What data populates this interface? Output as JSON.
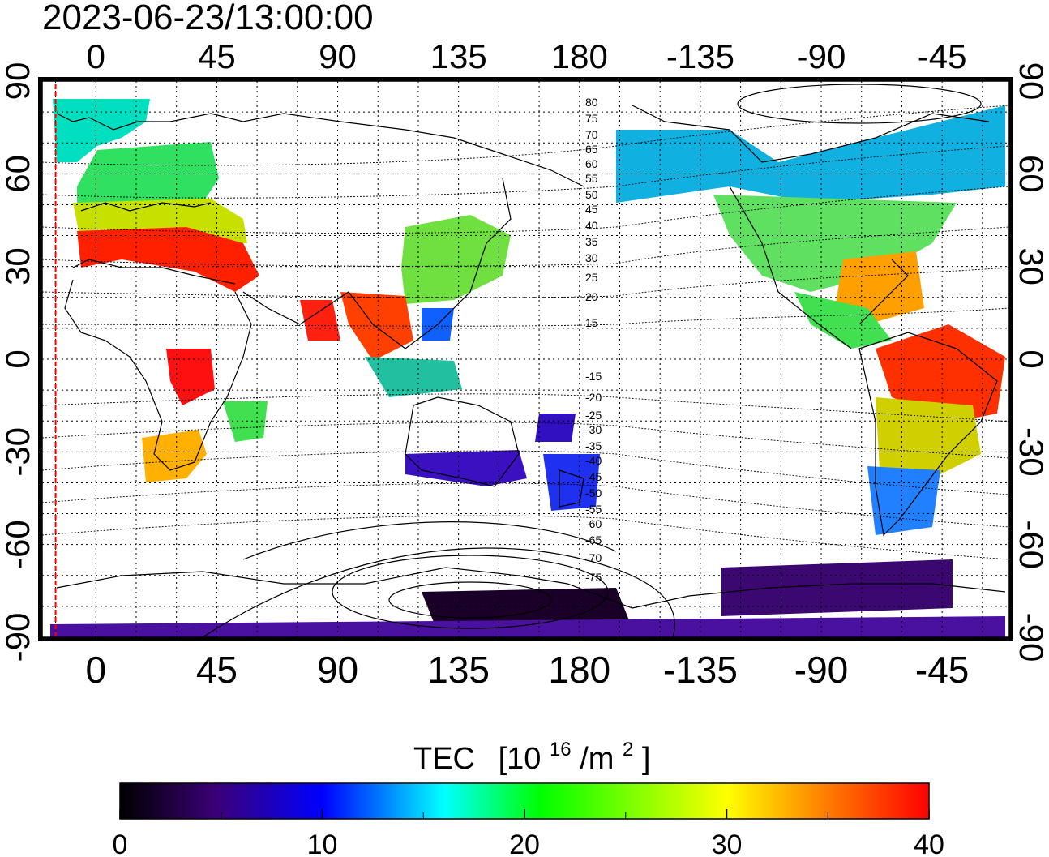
{
  "timestamp": "2023-06-23/13:00:00",
  "top_lon_labels": [
    "0",
    "45",
    "90",
    "135",
    "180",
    "-135",
    "-90",
    "-45"
  ],
  "bottom_lon_labels": [
    "0",
    "45",
    "90",
    "135",
    "180",
    "-135",
    "-90",
    "-45"
  ],
  "left_lat_labels": [
    "90",
    "60",
    "30",
    "0",
    "-30",
    "-60",
    "-90"
  ],
  "right_lat_labels": [
    "90",
    "60",
    "30",
    "0",
    "-30",
    "-60",
    "-90"
  ],
  "contour_labels": [
    "80",
    "75",
    "70",
    "65",
    "60",
    "55",
    "50",
    "45",
    "40",
    "35",
    "30",
    "25",
    "20",
    "15",
    "-15",
    "-20",
    "-25",
    "-30",
    "-35",
    "-40",
    "-45",
    "-50",
    "-55",
    "-60",
    "-65",
    "-70",
    "-75"
  ],
  "colorbar": {
    "title": "TEC",
    "unit_base": "[10",
    "unit_exp": "16",
    "unit_mid": "/m",
    "unit_exp2": "2",
    "unit_close": "]",
    "tick_labels": [
      "0",
      "10",
      "20",
      "30",
      "40"
    ],
    "min": 0,
    "max": 40,
    "stops": [
      "#000000",
      "#3b0078",
      "#0000ff",
      "#00ffff",
      "#00ff00",
      "#ffff00",
      "#ff8000",
      "#ff0000"
    ]
  },
  "map": {
    "lon_range": [
      -20,
      340
    ],
    "lat_range": [
      -90,
      90
    ],
    "grid_lon_step": 15,
    "grid_lat_step": 10,
    "terminator_lon": -15
  }
}
